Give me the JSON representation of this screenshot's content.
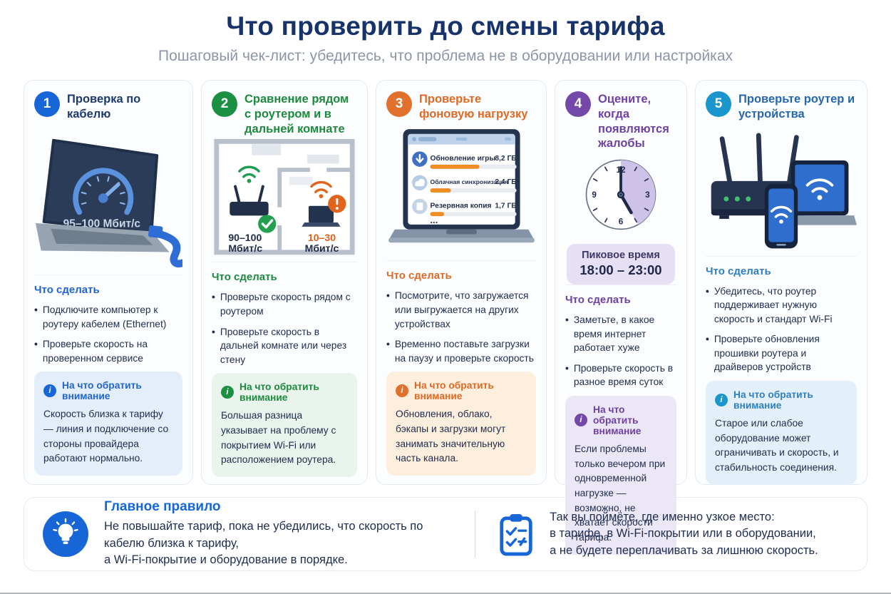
{
  "header": {
    "title": "Что проверить до смены тарифа",
    "subtitle": "Пошаговый чек-лист: убедитесь, что проблема не в оборудовании или настройках"
  },
  "cards": [
    {
      "number": "1",
      "title": "Проверка по кабелю",
      "section_label": "Что сделать",
      "bullets": [
        "Подключите компьютер к роутеру кабелем (Ethernet)",
        "Проверьте скорость на проверенном сервисе"
      ],
      "note_label": "На что обратить внимание",
      "note_text": "Скорость близка к тарифу — линия и подключение со стороны провайдера работают нормально.",
      "illustration": {
        "speed_label": "95–100 Мбит/с"
      }
    },
    {
      "number": "2",
      "title": "Сравнение рядом с роутером и в дальней комнате",
      "section_label": "Что сделать",
      "bullets": [
        "Проверьте скорость рядом с роутером",
        "Проверьте скорость в дальней комнате или через стену"
      ],
      "note_label": "На что обратить внимание",
      "note_text": "Большая разница указывает на проблему с покрытием Wi-Fi или расположением роутера.",
      "illustration": {
        "near_value": "90–100",
        "near_unit": "Мбит/с",
        "far_value": "10–30",
        "far_unit": "Мбит/с"
      }
    },
    {
      "number": "3",
      "title": "Проверьте фоновую нагрузку",
      "section_label": "Что сделать",
      "bullets": [
        "Посмотрите, что загружается или выгружается на других устройствах",
        "Временно поставьте загрузки на паузу и проверьте скорость"
      ],
      "note_label": "На что обратить внимание",
      "note_text": "Обновления, облако, бэкапы и загрузки могут занимать значительную часть канала.",
      "illustration": {
        "downloads": [
          {
            "label": "Обновление игры",
            "size": "8,2 ГБ",
            "progress_pct": 57
          },
          {
            "label": "Облачная синхронизация",
            "size": "2,4 ГБ",
            "progress_pct": 24
          },
          {
            "label": "Резервная копия",
            "size": "1,7 ГБ",
            "progress_pct": 16
          }
        ],
        "more": "..."
      }
    },
    {
      "number": "4",
      "title": "Оцените, когда появляются жалобы",
      "section_label": "Что сделать",
      "bullets": [
        "Заметьте, в какое время интернет работает хуже",
        "Проверьте скорость в разное время суток"
      ],
      "note_label": "На что обратить внимание",
      "note_text": "Если проблемы только вечером при одновременной нагрузке — возможно, не хватает скорости тарифа.",
      "illustration": {
        "clock_numbers": [
          "12",
          "3",
          "6",
          "9"
        ],
        "peak_label": "Пиковое время",
        "peak_time": "18:00 – 23:00"
      }
    },
    {
      "number": "5",
      "title": "Проверьте роутер и устройства",
      "section_label": "Что сделать",
      "bullets": [
        "Убедитесь, что роутер поддерживает нужную скорость и стандарт Wi-Fi",
        "Проверьте обновления прошивки роутера и драйверов устройств"
      ],
      "note_label": "На что обратить внимание",
      "note_text": "Старое или слабое оборудование может ограничивать и скорость, и стабильность соединения."
    }
  ],
  "footer": {
    "left": {
      "title": "Главное правило",
      "lines": [
        "Не повышайте тариф, пока не убедились, что скорость по кабелю близка к тарифу,",
        "а Wi-Fi-покрытие и оборудование в порядке."
      ]
    },
    "right": {
      "lines": [
        "Так вы поймёте, где именно узкое место:",
        "в тарифе, в Wi-Fi-покрытии или в оборудовании,",
        "а не будете переплачивать за лишнюю скорость."
      ]
    }
  },
  "colors": {
    "title_navy": "#17336b",
    "body_navy": "#1e2c4e",
    "subtitle_gray": "#8d96a8",
    "accent_blue": "#1766d8",
    "accent_green": "#1b8f42",
    "accent_orange": "#e0702c",
    "accent_purple": "#7448a8",
    "accent_cyan": "#1b96cc",
    "progress_orange": "#ef8d26"
  }
}
